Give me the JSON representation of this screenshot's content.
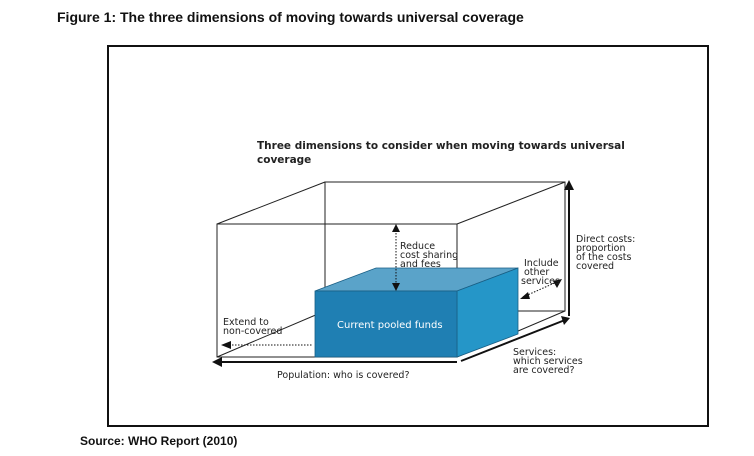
{
  "figure_title": "Figure 1: The three dimensions of moving towards universal coverage",
  "diagram": {
    "heading_line1": "Three dimensions to consider when moving towards universal",
    "heading_line2": "coverage",
    "reduce_label_1": "Reduce",
    "reduce_label_2": "cost sharing",
    "reduce_label_3": "and fees",
    "include_label_1": "Include",
    "include_label_2": "other",
    "include_label_3": "services",
    "direct_costs_1": "Direct costs:",
    "direct_costs_2": "proportion",
    "direct_costs_3": "of the costs",
    "direct_costs_4": "covered",
    "extend_label_1": "Extend to",
    "extend_label_2": "non-covered",
    "pooled_funds_label": "Current pooled funds",
    "services_label_1": "Services:",
    "services_label_2": "which services",
    "services_label_3": "are covered?",
    "population_label": "Population: who is covered?",
    "colors": {
      "box_front": "#1f7fb3",
      "box_top": "#5aa3c9",
      "box_side": "#2596c8",
      "box_text": "#ffffff"
    }
  },
  "source": "Source: WHO Report (2010)"
}
